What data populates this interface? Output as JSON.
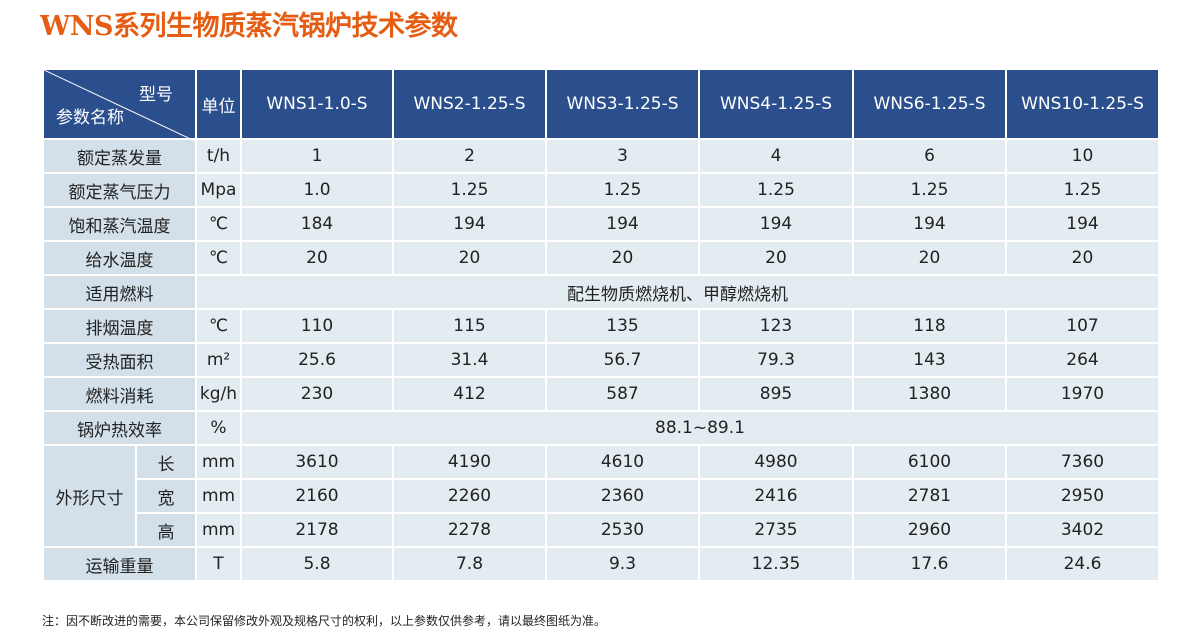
{
  "title": "WNS系列生物质蒸汽锅炉技术参数",
  "table": {
    "corner_top": "型号",
    "corner_bottom": "参数名称",
    "unit_header": "单位",
    "models": [
      "WNS1-1.0-S",
      "WNS2-1.25-S",
      "WNS3-1.25-S",
      "WNS4-1.25-S",
      "WNS6-1.25-S",
      "WNS10-1.25-S"
    ],
    "rows": [
      {
        "name": "额定蒸发量",
        "unit": "t/h",
        "values": [
          "1",
          "2",
          "3",
          "4",
          "6",
          "10"
        ]
      },
      {
        "name": "额定蒸气压力",
        "unit": "Mpa",
        "values": [
          "1.0",
          "1.25",
          "1.25",
          "1.25",
          "1.25",
          "1.25"
        ]
      },
      {
        "name": "饱和蒸汽温度",
        "unit": "℃",
        "values": [
          "184",
          "194",
          "194",
          "194",
          "194",
          "194"
        ]
      },
      {
        "name": "给水温度",
        "unit": "℃",
        "values": [
          "20",
          "20",
          "20",
          "20",
          "20",
          "20"
        ]
      },
      {
        "name": "适用燃料",
        "merged": "配生物质燃烧机、甲醇燃烧机"
      },
      {
        "name": "排烟温度",
        "unit": "℃",
        "values": [
          "110",
          "115",
          "135",
          "123",
          "118",
          "107"
        ]
      },
      {
        "name": "受热面积",
        "unit": "m²",
        "values": [
          "25.6",
          "31.4",
          "56.7",
          "79.3",
          "143",
          "264"
        ]
      },
      {
        "name": "燃料消耗",
        "unit": "kg/h",
        "values": [
          "230",
          "412",
          "587",
          "895",
          "1380",
          "1970"
        ]
      },
      {
        "name": "锅炉热效率",
        "unit": "%",
        "merged": "88.1~89.1"
      },
      {
        "group": "外形尺寸",
        "rows": [
          {
            "name": "长",
            "unit": "mm",
            "values": [
              "3610",
              "4190",
              "4610",
              "4980",
              "6100",
              "7360"
            ]
          },
          {
            "name": "宽",
            "unit": "mm",
            "values": [
              "2160",
              "2260",
              "2360",
              "2416",
              "2781",
              "2950"
            ]
          },
          {
            "name": "高",
            "unit": "mm",
            "values": [
              "2178",
              "2278",
              "2530",
              "2735",
              "2960",
              "3402"
            ]
          }
        ]
      },
      {
        "name": "运输重量",
        "unit": "T",
        "values": [
          "5.8",
          "7.8",
          "9.3",
          "12.35",
          "17.6",
          "24.6"
        ]
      }
    ]
  },
  "note": "注：因不断改进的需要，本公司保留修改外观及规格尺寸的权利，以上参数仅供参考，请以最终图纸为准。"
}
